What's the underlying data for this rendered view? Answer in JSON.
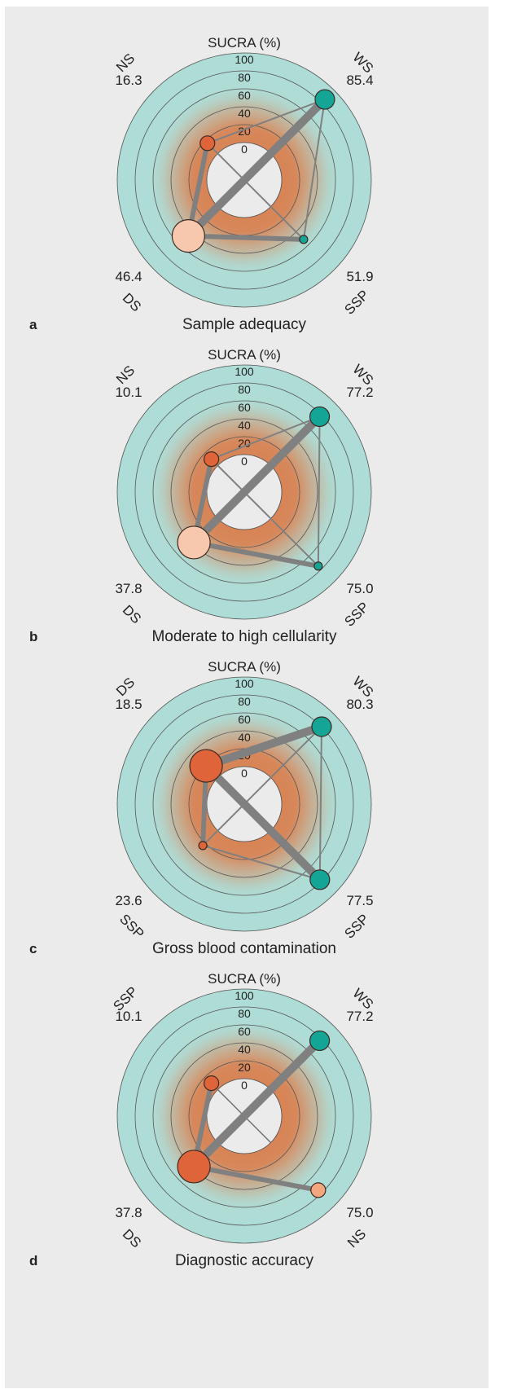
{
  "chart_data": [
    {
      "panel_label": "a",
      "type": "radar-network",
      "title": "Sample adequacy",
      "axis_title": "SUCRA (%)",
      "rlim": [
        0,
        100
      ],
      "ticks": [
        "0",
        "20",
        "40",
        "60",
        "80",
        "100"
      ],
      "nodes": [
        {
          "name": "NS",
          "value": "16.3",
          "sucra": 16.3,
          "quadrant": "top-left",
          "color": "#e0643a",
          "size": "small"
        },
        {
          "name": "WS",
          "value": "85.4",
          "sucra": 85.4,
          "quadrant": "top-right",
          "color": "#14a597",
          "size": "medium"
        },
        {
          "name": "SSP",
          "value": "51.9",
          "sucra": 51.9,
          "quadrant": "bottom-right",
          "color": "#14a597",
          "size": "tiny"
        },
        {
          "name": "DS",
          "value": "46.4",
          "sucra": 46.4,
          "quadrant": "bottom-left",
          "color": "#f7c8ae",
          "size": "large"
        }
      ],
      "edges": [
        {
          "from": "DS",
          "to": "WS",
          "weight": "thick"
        },
        {
          "from": "DS",
          "to": "NS",
          "weight": "medium"
        },
        {
          "from": "DS",
          "to": "SSP",
          "weight": "medium"
        },
        {
          "from": "NS",
          "to": "WS",
          "weight": "thin"
        },
        {
          "from": "NS",
          "to": "SSP",
          "weight": "thin"
        },
        {
          "from": "WS",
          "to": "SSP",
          "weight": "thin"
        }
      ]
    },
    {
      "panel_label": "b",
      "type": "radar-network",
      "title": "Moderate to high cellularity",
      "axis_title": "SUCRA (%)",
      "rlim": [
        0,
        100
      ],
      "ticks": [
        "0",
        "20",
        "40",
        "60",
        "80",
        "100"
      ],
      "nodes": [
        {
          "name": "NS",
          "value": "10.1",
          "sucra": 10.1,
          "quadrant": "top-left",
          "color": "#e0643a",
          "size": "small"
        },
        {
          "name": "WS",
          "value": "77.2",
          "sucra": 77.2,
          "quadrant": "top-right",
          "color": "#14a597",
          "size": "medium"
        },
        {
          "name": "SSP",
          "value": "75.0",
          "sucra": 75.0,
          "quadrant": "bottom-right",
          "color": "#14a597",
          "size": "tiny"
        },
        {
          "name": "DS",
          "value": "37.8",
          "sucra": 37.8,
          "quadrant": "bottom-left",
          "color": "#f7c8ae",
          "size": "large"
        }
      ],
      "edges": [
        {
          "from": "DS",
          "to": "WS",
          "weight": "thick"
        },
        {
          "from": "DS",
          "to": "NS",
          "weight": "medium"
        },
        {
          "from": "DS",
          "to": "SSP",
          "weight": "medium"
        },
        {
          "from": "NS",
          "to": "WS",
          "weight": "thin"
        },
        {
          "from": "NS",
          "to": "SSP",
          "weight": "thin"
        },
        {
          "from": "WS",
          "to": "SSP",
          "weight": "thin"
        }
      ]
    },
    {
      "panel_label": "c",
      "type": "radar-network",
      "title": "Gross blood contamination",
      "axis_title": "SUCRA (%)",
      "rlim": [
        0,
        100
      ],
      "ticks": [
        "0",
        "20",
        "40",
        "60",
        "80",
        "100"
      ],
      "nodes": [
        {
          "name": "DS",
          "value": "18.5",
          "sucra": 18.5,
          "quadrant": "top-left",
          "color": "#e0643a",
          "size": "large"
        },
        {
          "name": "WS",
          "value": "80.3",
          "sucra": 80.3,
          "quadrant": "top-right",
          "color": "#14a597",
          "size": "medium"
        },
        {
          "name": "SSP",
          "value": "77.5",
          "sucra": 77.5,
          "quadrant": "bottom-right",
          "color": "#14a597",
          "size": "medium"
        },
        {
          "name": "SSP",
          "value": "23.6",
          "sucra": 23.6,
          "quadrant": "bottom-left",
          "color": "#e0643a",
          "size": "tiny"
        }
      ],
      "edges": [
        {
          "from": "DS",
          "to": "WS",
          "weight": "thick"
        },
        {
          "from": "DS",
          "to": "SSP",
          "weight": "thick",
          "to_quadrant": "bottom-right"
        },
        {
          "from": "DS",
          "to": "SSP",
          "weight": "medium",
          "to_quadrant": "bottom-left"
        },
        {
          "from": "SSP",
          "to": "WS",
          "weight": "thin",
          "from_quadrant": "bottom-left"
        },
        {
          "from": "SSP",
          "to": "SSP",
          "weight": "thin"
        },
        {
          "from": "WS",
          "to": "SSP",
          "weight": "thin",
          "to_quadrant": "bottom-right"
        }
      ]
    },
    {
      "panel_label": "d",
      "type": "radar-network",
      "title": "Diagnostic accuracy",
      "axis_title": "SUCRA (%)",
      "rlim": [
        0,
        100
      ],
      "ticks": [
        "0",
        "20",
        "40",
        "60",
        "80",
        "100"
      ],
      "nodes": [
        {
          "name": "SSP",
          "value": "10.1",
          "sucra": 10.1,
          "quadrant": "top-left",
          "color": "#e0643a",
          "size": "small"
        },
        {
          "name": "WS",
          "value": "77.2",
          "sucra": 77.2,
          "quadrant": "top-right",
          "color": "#14a597",
          "size": "medium"
        },
        {
          "name": "NS",
          "value": "75.0",
          "sucra": 75.0,
          "quadrant": "bottom-right",
          "color": "#f4a77e",
          "size": "small"
        },
        {
          "name": "DS",
          "value": "37.8",
          "sucra": 37.8,
          "quadrant": "bottom-left",
          "color": "#e0643a",
          "size": "large"
        }
      ],
      "edges": [
        {
          "from": "DS",
          "to": "WS",
          "weight": "thick"
        },
        {
          "from": "DS",
          "to": "SSP",
          "weight": "medium"
        },
        {
          "from": "DS",
          "to": "NS",
          "weight": "medium"
        }
      ]
    }
  ]
}
